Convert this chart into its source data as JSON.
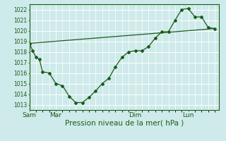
{
  "bg_color": "#ceeaea",
  "grid_color": "#ffffff",
  "line_color": "#1a5c1a",
  "marker_color": "#1a5c1a",
  "xlabel": "Pression niveau de la mer( hPa )",
  "xlabel_fontsize": 7.5,
  "ylim": [
    1012.5,
    1022.5
  ],
  "yticks": [
    1013,
    1014,
    1015,
    1016,
    1017,
    1018,
    1019,
    1020,
    1021,
    1022
  ],
  "xtick_labels": [
    "Sam",
    "Mar",
    "Dim",
    "Lun"
  ],
  "xtick_positions": [
    0,
    24,
    96,
    144
  ],
  "vline_positions": [
    0,
    24,
    96,
    144
  ],
  "xlim": [
    0,
    172
  ],
  "series1_x": [
    0,
    3,
    6,
    9,
    12,
    18,
    24,
    30,
    36,
    42,
    48,
    54,
    60,
    66,
    72,
    78,
    84,
    90,
    96,
    102,
    108,
    114,
    120,
    126,
    132,
    138,
    144,
    150,
    156,
    162,
    168
  ],
  "series1_y": [
    1018.8,
    1018.1,
    1017.5,
    1017.3,
    1016.1,
    1016.0,
    1015.0,
    1014.8,
    1013.8,
    1013.2,
    1013.2,
    1013.7,
    1014.3,
    1015.0,
    1015.5,
    1016.6,
    1017.5,
    1018.0,
    1018.1,
    1018.1,
    1018.5,
    1019.3,
    1019.9,
    1019.9,
    1021.0,
    1022.0,
    1022.1,
    1021.3,
    1021.3,
    1020.3,
    1020.2
  ],
  "series2_x": [
    0,
    168
  ],
  "series2_y": [
    1018.8,
    1020.2
  ],
  "ytick_fontsize": 5.5,
  "xtick_fontsize": 6.5
}
